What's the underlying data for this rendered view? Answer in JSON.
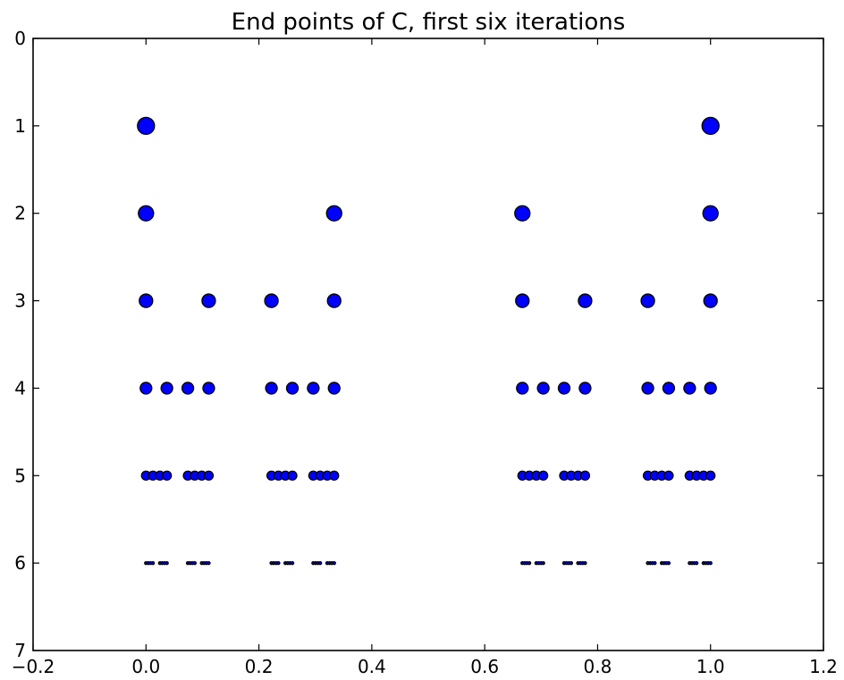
{
  "chart_data": {
    "type": "scatter",
    "title": "End points of C, first six iterations",
    "xlabel": "",
    "ylabel": "",
    "xlim": [
      -0.2,
      1.2
    ],
    "ylim": [
      0,
      7
    ],
    "y_inverted": true,
    "x_ticks": [
      "−0.2",
      "0.0",
      "0.2",
      "0.4",
      "0.6",
      "0.8",
      "1.0",
      "1.2"
    ],
    "y_ticks": [
      "0",
      "1",
      "2",
      "3",
      "4",
      "5",
      "6",
      "7"
    ],
    "marker_color": "#0000ff",
    "marker_edge_color": "#000000",
    "grid": false,
    "legend": "none",
    "series": [
      {
        "iteration": 1,
        "x": [
          0,
          1
        ]
      },
      {
        "iteration": 2,
        "x": [
          0,
          0.3333,
          0.6667,
          1
        ]
      },
      {
        "iteration": 3,
        "x": [
          0,
          0.1111,
          0.2222,
          0.3333,
          0.6667,
          0.7778,
          0.8889,
          1
        ]
      },
      {
        "iteration": 4,
        "x": [
          0,
          0.037,
          0.0741,
          0.1111,
          0.2222,
          0.2593,
          0.2963,
          0.3333,
          0.6667,
          0.7037,
          0.7407,
          0.7778,
          0.8889,
          0.9259,
          0.963,
          1
        ]
      },
      {
        "iteration": 5,
        "x": [
          0,
          0.0123,
          0.0247,
          0.037,
          0.0741,
          0.0864,
          0.0988,
          0.1111,
          0.2222,
          0.2346,
          0.2469,
          0.2593,
          0.2963,
          0.3086,
          0.321,
          0.3333,
          0.6667,
          0.679,
          0.6914,
          0.7037,
          0.7407,
          0.7531,
          0.7654,
          0.7778,
          0.8889,
          0.9012,
          0.9136,
          0.9259,
          0.963,
          0.9753,
          0.9877,
          1
        ]
      },
      {
        "iteration": 6,
        "x": [
          0,
          0.0041,
          0.0082,
          0.0123,
          0.0247,
          0.0288,
          0.0329,
          0.037,
          0.0741,
          0.0782,
          0.0823,
          0.0864,
          0.0988,
          0.1029,
          0.107,
          0.1111,
          0.2222,
          0.2263,
          0.2305,
          0.2346,
          0.2469,
          0.251,
          0.2551,
          0.2593,
          0.2963,
          0.3004,
          0.3045,
          0.3086,
          0.321,
          0.3251,
          0.3292,
          0.3333,
          0.6667,
          0.6708,
          0.6749,
          0.679,
          0.6914,
          0.6955,
          0.6996,
          0.7037,
          0.7407,
          0.7449,
          0.749,
          0.7531,
          0.7654,
          0.7695,
          0.7737,
          0.7778,
          0.8889,
          0.893,
          0.8971,
          0.9012,
          0.9136,
          0.9177,
          0.9218,
          0.9259,
          0.963,
          0.9671,
          0.9712,
          0.9753,
          0.9877,
          0.9918,
          0.9959,
          1
        ]
      }
    ]
  }
}
